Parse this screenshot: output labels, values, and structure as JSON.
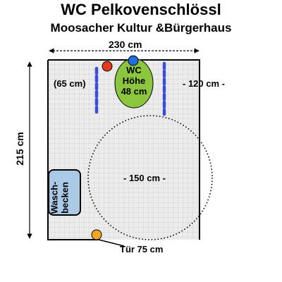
{
  "title": "WC Pelkovenschlössl",
  "subtitle": "Moosacher Kultur &Bürgerhaus",
  "dimensions": {
    "width": "230 cm",
    "height": "215 cm",
    "left_clearance": "(65 cm)",
    "right_clearance": "- 120 cm -",
    "turning_circle": "- 150 cm -",
    "door": "Tür 75 cm"
  },
  "wc": {
    "line1": "WC",
    "line2": "Höhe",
    "line3": "48 cm"
  },
  "sink": {
    "line1": "Wasch-",
    "line2": "becken"
  },
  "colors": {
    "room_fill": "#ececec",
    "toilet": "#8cc63f",
    "grab_bar": "#3a4fd8",
    "sink": "#a9c9e6",
    "marker_red": "#e53a1e",
    "marker_blue": "#1f6fe0",
    "marker_orange": "#f0a820"
  }
}
